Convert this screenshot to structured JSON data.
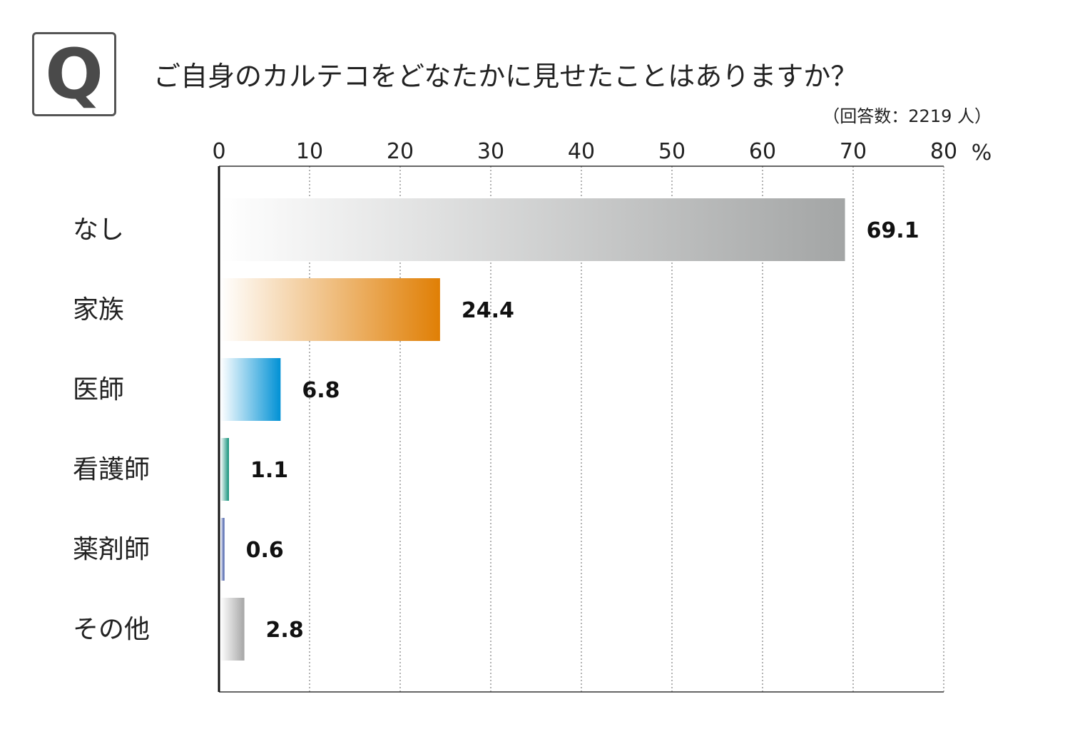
{
  "question_mark": "Q",
  "chart_data": {
    "type": "bar",
    "orientation": "horizontal",
    "title": "ご自身のカルテコをどなたかに見せたことはありますか？",
    "subtitle": "（回答数：2219 人）",
    "unit": "%",
    "categories": [
      "なし",
      "家族",
      "医師",
      "看護師",
      "薬剤師",
      "その他"
    ],
    "values": [
      69.1,
      24.4,
      6.8,
      1.1,
      0.6,
      2.8
    ],
    "value_labels": [
      "69.1",
      "24.4",
      "6.8",
      "1.1",
      "0.6",
      "2.8"
    ],
    "xticks": [
      "0",
      "10",
      "20",
      "30",
      "40",
      "50",
      "60",
      "70",
      "80"
    ],
    "xlim": [
      0,
      80
    ],
    "grid": true,
    "bar_colors": [
      {
        "from": "#ffffff",
        "to": "#a3a5a5"
      },
      {
        "from": "#ffffff",
        "to": "#e07f05"
      },
      {
        "from": "#ffffff",
        "to": "#0091d5"
      },
      {
        "from": "#ffffff",
        "to": "#13917a"
      },
      {
        "from": "#ffffff",
        "to": "#3a53a4"
      },
      {
        "from": "#ffffff",
        "to": "#a6a6a6"
      }
    ]
  }
}
